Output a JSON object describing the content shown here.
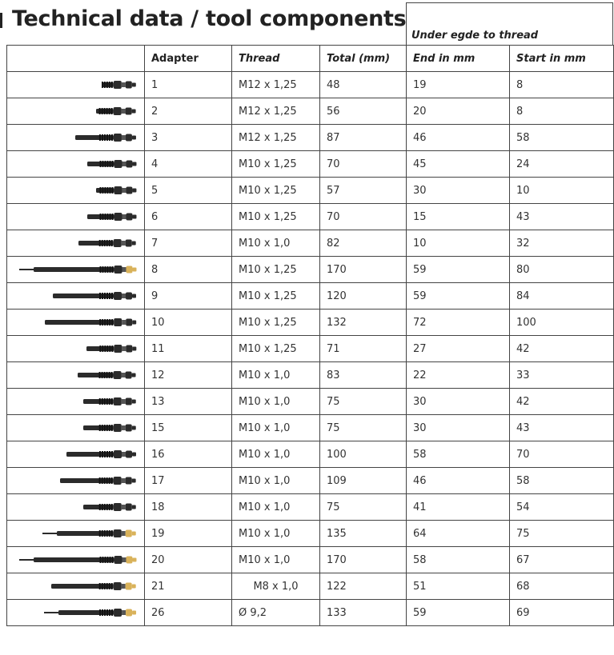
{
  "title": "Technical data / tool components",
  "group_header": "Under egde to thread",
  "columns": [
    "",
    "Adapter",
    "Thread",
    "Total (mm)",
    "End in mm",
    "Start in mm"
  ],
  "rows": [
    {
      "adapter": "1",
      "thread": "M12 x 1,25",
      "total": "48",
      "end": "19",
      "start": "8"
    },
    {
      "adapter": "2",
      "thread": "M12 x 1,25",
      "total": "56",
      "end": "20",
      "start": "8"
    },
    {
      "adapter": "3",
      "thread": "M12 x 1,25",
      "total": "87",
      "end": "46",
      "start": "58"
    },
    {
      "adapter": "4",
      "thread": "M10 x 1,25",
      "total": "70",
      "end": "45",
      "start": "24"
    },
    {
      "adapter": "5",
      "thread": "M10 x 1,25",
      "total": "57",
      "end": "30",
      "start": "10"
    },
    {
      "adapter": "6",
      "thread": "M10 x 1,25",
      "total": "70",
      "end": "15",
      "start": "43"
    },
    {
      "adapter": "7",
      "thread": "M10 x 1,0",
      "total": "82",
      "end": "10",
      "start": "32"
    },
    {
      "adapter": "8",
      "thread": "M10 x 1,25",
      "total": "170",
      "end": "59",
      "start": "80"
    },
    {
      "adapter": "9",
      "thread": "M10 x 1,25",
      "total": "120",
      "end": "59",
      "start": "84"
    },
    {
      "adapter": "10",
      "thread": "M10 x 1,25",
      "total": "132",
      "end": "72",
      "start": "100"
    },
    {
      "adapter": "11",
      "thread": "M10 x 1,25",
      "total": "71",
      "end": "27",
      "start": "42"
    },
    {
      "adapter": "12",
      "thread": "M10 x 1,0",
      "total": "83",
      "end": "22",
      "start": "33"
    },
    {
      "adapter": "13",
      "thread": "M10 x 1,0",
      "total": "75",
      "end": "30",
      "start": "42"
    },
    {
      "adapter": "15",
      "thread": "M10 x 1,0",
      "total": "75",
      "end": "30",
      "start": "43"
    },
    {
      "adapter": "16",
      "thread": "M10 x 1,0",
      "total": "100",
      "end": "58",
      "start": "70"
    },
    {
      "adapter": "17",
      "thread": "M10 x 1,0",
      "total": "109",
      "end": "46",
      "start": "58"
    },
    {
      "adapter": "18",
      "thread": "M10 x 1,0",
      "total": "75",
      "end": "41",
      "start": "54"
    },
    {
      "adapter": "19",
      "thread": "M10 x 1,0",
      "total": "135",
      "end": "64",
      "start": "75"
    },
    {
      "adapter": "20",
      "thread": "M10 x 1,0",
      "total": "170",
      "end": "58",
      "start": "67"
    },
    {
      "adapter": "21",
      "thread": "M8 x 1,0",
      "total": "122",
      "end": "51",
      "start": "68"
    },
    {
      "adapter": "26",
      "thread": "Ø 9,2",
      "total": "133",
      "end": "59",
      "start": "69"
    }
  ],
  "colors": {
    "tool_body": "#2b2b2b",
    "brass_tip": "#d9b25a"
  }
}
